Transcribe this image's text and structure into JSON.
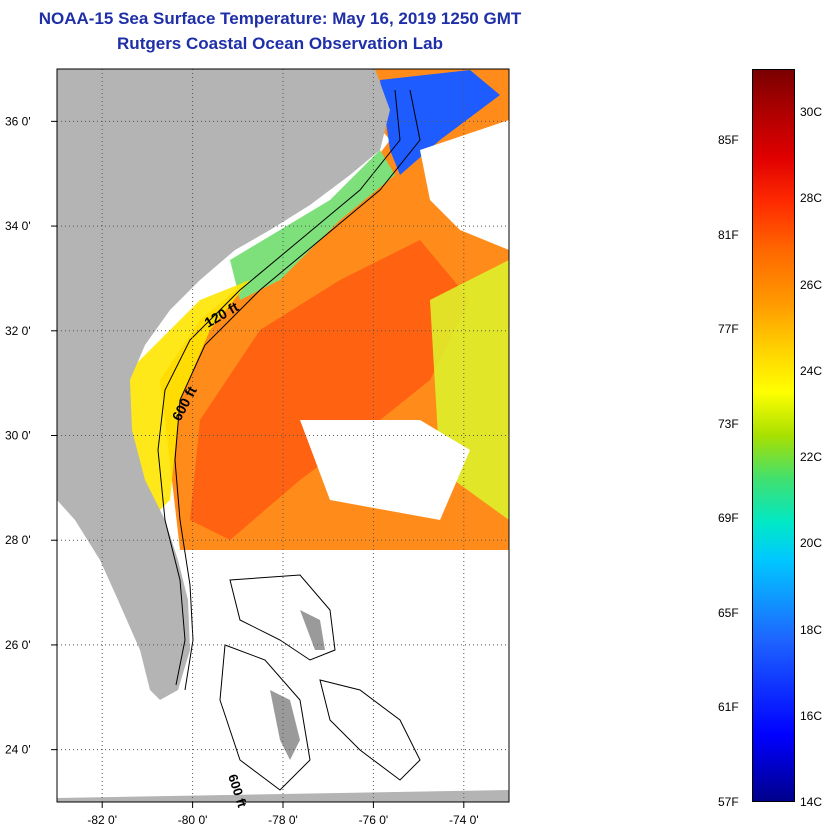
{
  "title": {
    "line1": "NOAA-15 Sea Surface Temperature:  May 16, 2019 1250 GMT",
    "line2": "Rutgers Coastal Ocean Observation Lab"
  },
  "map": {
    "lat_range": [
      23.0,
      37.0
    ],
    "lon_range": [
      -83.0,
      -73.0
    ],
    "lat_ticks": [
      {
        "value": 36,
        "label": "36 0'"
      },
      {
        "value": 34,
        "label": "34 0'"
      },
      {
        "value": 32,
        "label": "32 0'"
      },
      {
        "value": 30,
        "label": "30 0'"
      },
      {
        "value": 28,
        "label": "28 0'"
      },
      {
        "value": 26,
        "label": "26 0'"
      },
      {
        "value": 24,
        "label": "24 0'"
      }
    ],
    "lon_ticks": [
      {
        "value": -82,
        "label": "-82 0'"
      },
      {
        "value": -80,
        "label": "-80 0'"
      },
      {
        "value": -78,
        "label": "-78 0'"
      },
      {
        "value": -76,
        "label": "-76 0'"
      },
      {
        "value": -74,
        "label": "-74 0'"
      }
    ],
    "grid": "dotted",
    "contours": [
      {
        "label": "120 ft"
      },
      {
        "label": "600 ft"
      },
      {
        "label": "600 ft"
      }
    ]
  },
  "colorbar": {
    "range_f": [
      57,
      88
    ],
    "range_c": [
      14,
      31
    ],
    "f_labels": [
      "85F",
      "81F",
      "77F",
      "73F",
      "69F",
      "65F",
      "61F",
      "57F"
    ],
    "c_labels": [
      "30C",
      "28C",
      "26C",
      "24C",
      "22C",
      "20C",
      "18C",
      "16C",
      "14C"
    ],
    "colors": {
      "cold": "#00008b",
      "mid": "#ffff00",
      "warm": "#7a0000",
      "land": "#b4b4b4"
    }
  }
}
